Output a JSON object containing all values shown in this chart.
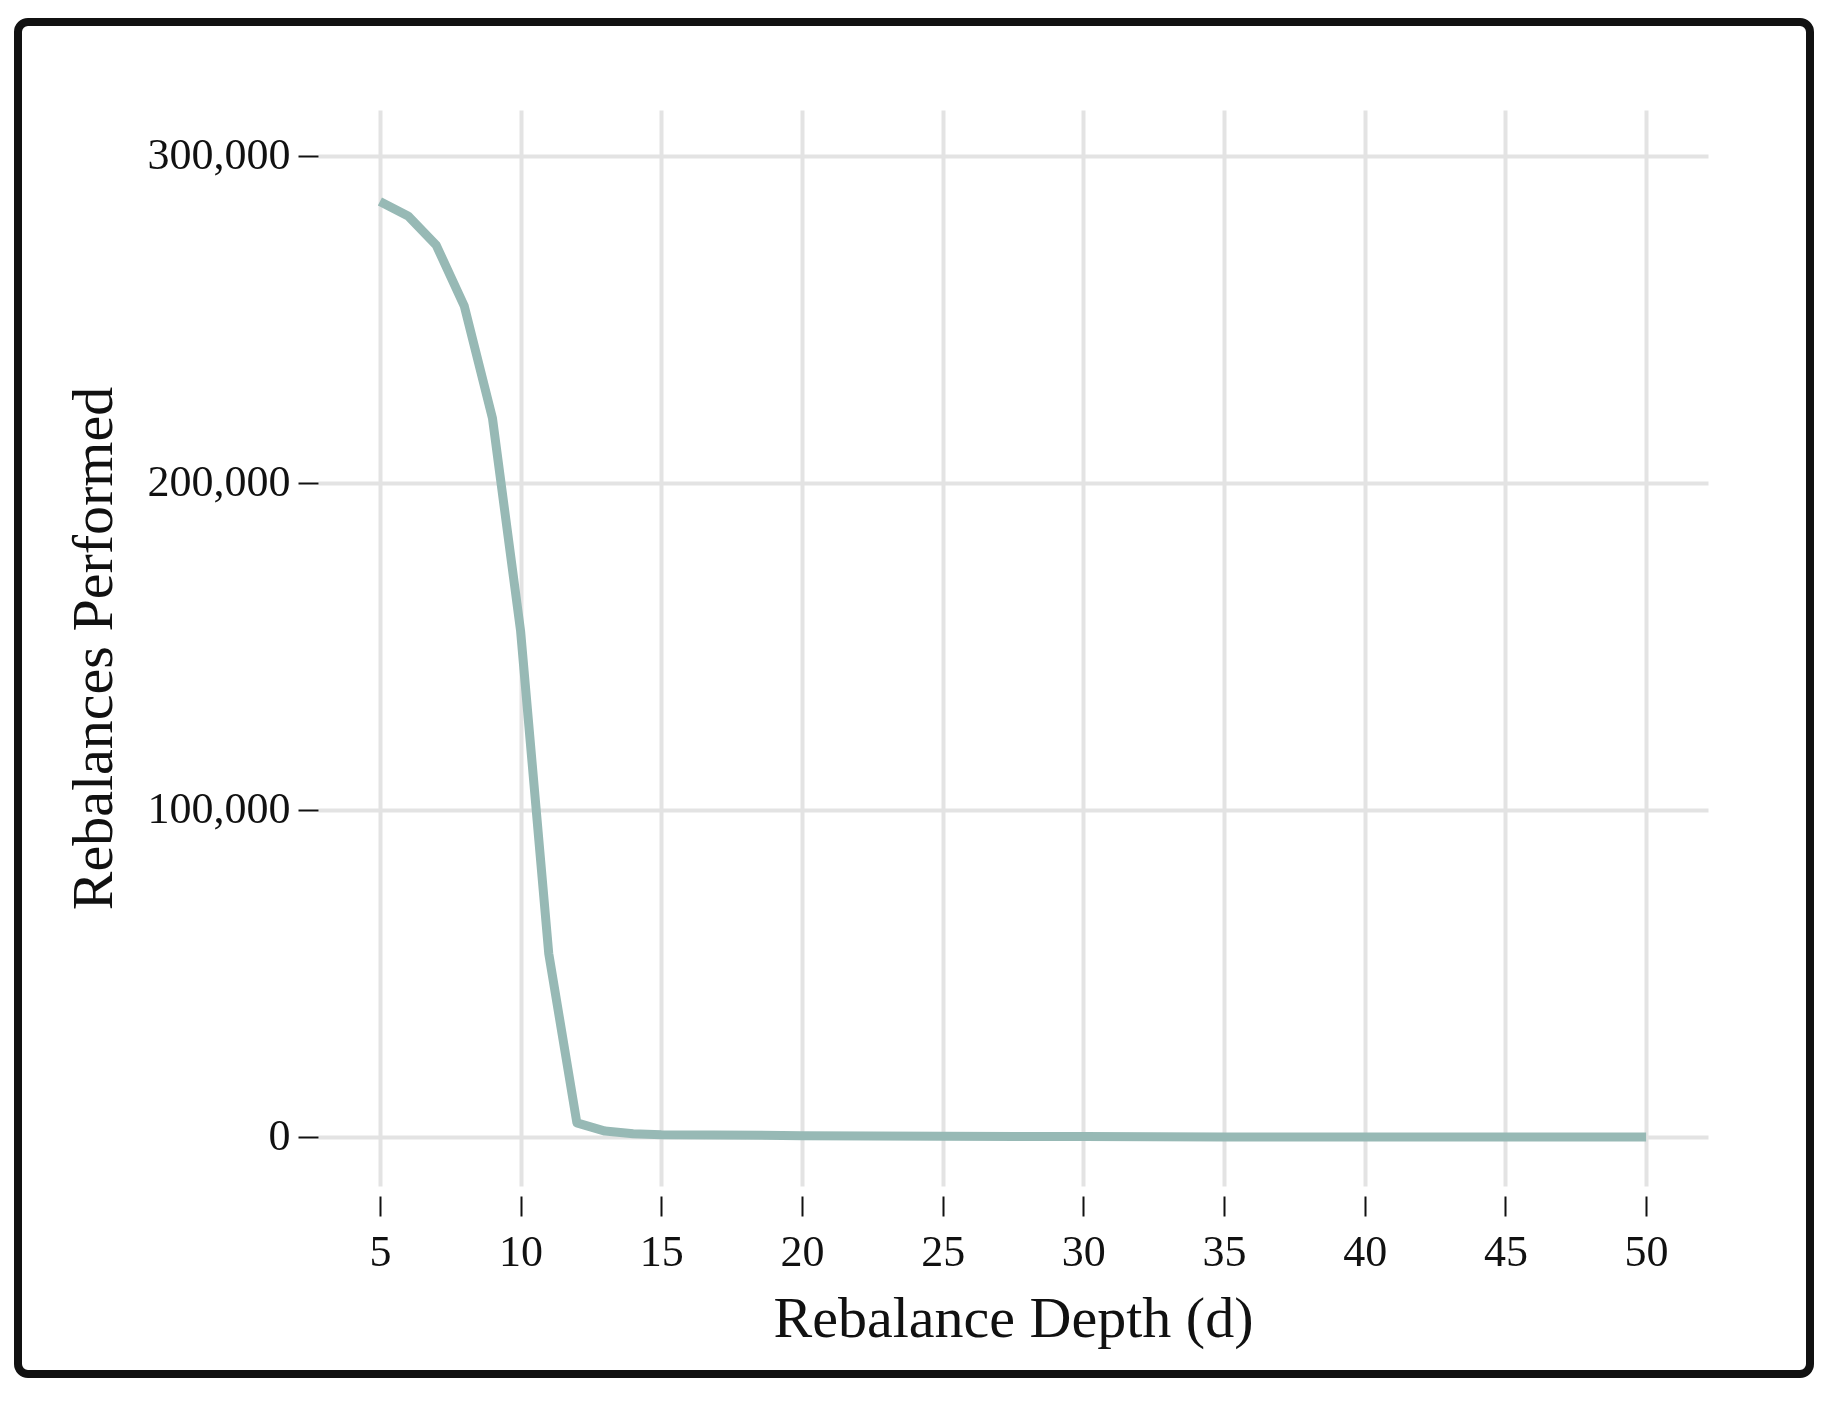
{
  "chart_data": {
    "type": "line",
    "xlabel": "Rebalance Depth (d)",
    "ylabel": "Rebalances Performed",
    "x": [
      5,
      6,
      7,
      8,
      9,
      10,
      11,
      12,
      13,
      14,
      15,
      20,
      25,
      30,
      35,
      40,
      45,
      50
    ],
    "series": [
      {
        "color": "#97b9b5",
        "values": [
          286000,
          281600,
          272700,
          254000,
          219800,
          154700,
          56100,
          4300,
          1800,
          1000,
          700,
          400,
          200,
          100,
          0,
          0,
          0,
          0
        ]
      }
    ],
    "xlim": [
      2.8,
      52.2
    ],
    "ylim": [
      -15000,
      314000
    ],
    "xticks": [
      5,
      10,
      15,
      20,
      25,
      30,
      35,
      40,
      45,
      50
    ],
    "yticks": [
      0,
      {
        "value": 100000,
        "label": "100,000"
      },
      {
        "value": 200000,
        "label": "200,000"
      },
      {
        "value": 300000,
        "label": "300,000"
      }
    ],
    "grid": true,
    "marker": "none",
    "line_style": "solid"
  }
}
